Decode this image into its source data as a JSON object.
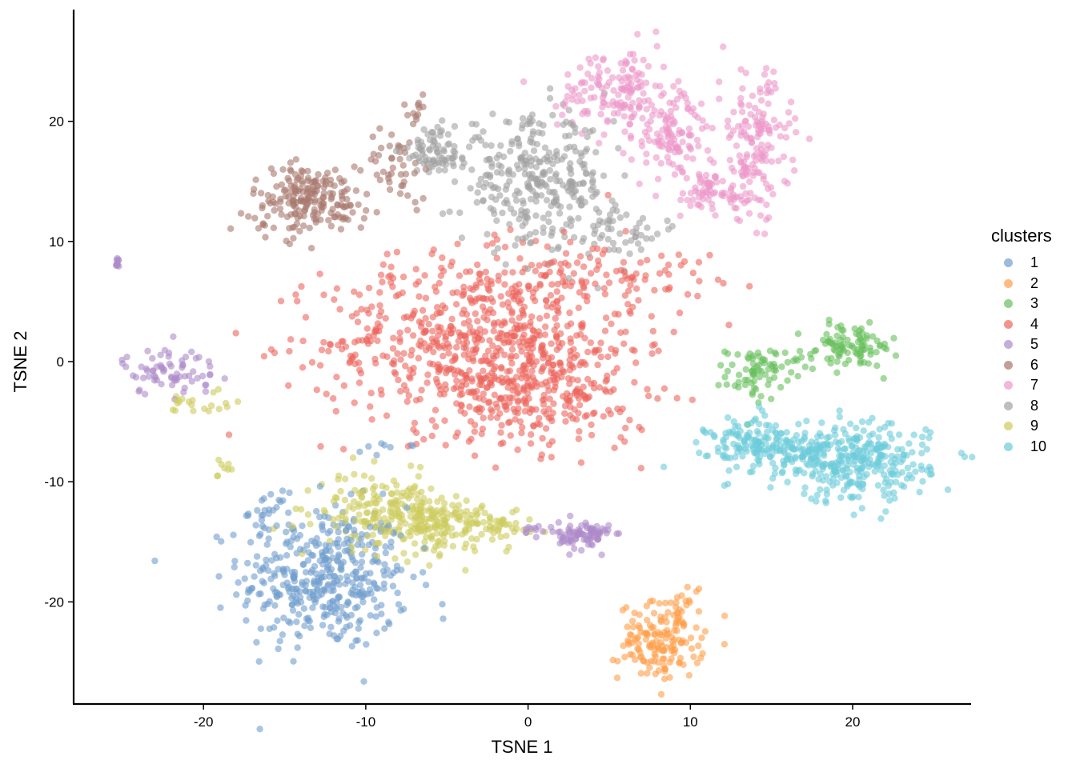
{
  "chart_data": {
    "type": "scatter",
    "title": "",
    "xlabel": "TSNE 1",
    "ylabel": "TSNE 2",
    "xlim": [
      -28,
      27.3
    ],
    "ylim": [
      -28.5,
      29.3
    ],
    "x_ticks": [
      -20,
      -10,
      0,
      10,
      20
    ],
    "y_ticks": [
      -20,
      -10,
      0,
      10,
      20
    ],
    "x_tick_labels": [
      "-20",
      "-10",
      "0",
      "10",
      "20"
    ],
    "y_tick_labels": [
      "-20",
      "-10",
      "0",
      "10",
      "20"
    ],
    "grid": false,
    "point_alpha": 0.6,
    "legend": {
      "title": "clusters",
      "position": "right"
    },
    "series": [
      {
        "name": "1",
        "color": "#729ece",
        "blobs": [
          {
            "cx": -12.5,
            "cy": -18,
            "sx": 2.6,
            "sy": 3.0,
            "n": 420
          },
          {
            "cx": -16,
            "cy": -12.5,
            "sx": 0.6,
            "sy": 0.8,
            "n": 25
          },
          {
            "cx": -8.5,
            "cy": -7.3,
            "sx": 0.8,
            "sy": 0.3,
            "n": 8
          }
        ]
      },
      {
        "name": "2",
        "color": "#ff9e4a",
        "blobs": [
          {
            "cx": 8.2,
            "cy": -23.3,
            "sx": 1.3,
            "sy": 1.6,
            "n": 150
          },
          {
            "cx": 9.8,
            "cy": -20,
            "sx": 0.5,
            "sy": 0.8,
            "n": 15
          }
        ]
      },
      {
        "name": "3",
        "color": "#67bf5c",
        "blobs": [
          {
            "cx": 14,
            "cy": -1,
            "sx": 0.9,
            "sy": 1.1,
            "n": 70
          },
          {
            "cx": 20,
            "cy": 1.3,
            "sx": 1.4,
            "sy": 0.9,
            "n": 90
          },
          {
            "cx": 16.8,
            "cy": 0.2,
            "sx": 1.0,
            "sy": 0.3,
            "n": 12
          }
        ]
      },
      {
        "name": "4",
        "color": "#ed665d",
        "blobs": [
          {
            "cx": -3,
            "cy": 1.5,
            "sx": 4.8,
            "sy": 3.6,
            "n": 700
          },
          {
            "cx": 1.5,
            "cy": -3,
            "sx": 3.0,
            "sy": 2.2,
            "n": 180
          },
          {
            "cx": 3.5,
            "cy": 7.5,
            "sx": 4.0,
            "sy": 1.4,
            "n": 110
          }
        ]
      },
      {
        "name": "5",
        "color": "#ad8bc9",
        "blobs": [
          {
            "cx": -22,
            "cy": -0.8,
            "sx": 1.5,
            "sy": 1.0,
            "n": 70
          },
          {
            "cx": 3.5,
            "cy": -14.5,
            "sx": 0.8,
            "sy": 0.6,
            "n": 80
          },
          {
            "cx": 1,
            "cy": -14,
            "sx": 0.8,
            "sy": 0.3,
            "n": 15
          },
          {
            "cx": -25.3,
            "cy": 8.3,
            "sx": 0.05,
            "sy": 0.3,
            "n": 10
          }
        ]
      },
      {
        "name": "6",
        "color": "#a8786e",
        "blobs": [
          {
            "cx": -13.5,
            "cy": 13.5,
            "sx": 1.8,
            "sy": 1.4,
            "n": 200
          },
          {
            "cx": -8,
            "cy": 16.5,
            "sx": 1.0,
            "sy": 1.5,
            "n": 40
          },
          {
            "cx": -6.8,
            "cy": 21,
            "sx": 0.5,
            "sy": 0.8,
            "n": 12
          }
        ]
      },
      {
        "name": "7",
        "color": "#ed97ca",
        "blobs": [
          {
            "cx": 5.5,
            "cy": 22.5,
            "sx": 1.8,
            "sy": 1.7,
            "n": 150
          },
          {
            "cx": 9,
            "cy": 18.5,
            "sx": 1.4,
            "sy": 1.8,
            "n": 110
          },
          {
            "cx": 14,
            "cy": 18,
            "sx": 1.1,
            "sy": 3.0,
            "n": 160
          },
          {
            "cx": 11,
            "cy": 14,
            "sx": 1.5,
            "sy": 1.0,
            "n": 60
          }
        ]
      },
      {
        "name": "8",
        "color": "#a2a2a2",
        "blobs": [
          {
            "cx": -5.5,
            "cy": 17.5,
            "sx": 1.2,
            "sy": 1.0,
            "n": 80
          },
          {
            "cx": 0.5,
            "cy": 15,
            "sx": 2.3,
            "sy": 2.6,
            "n": 300
          },
          {
            "cx": 5.5,
            "cy": 11,
            "sx": 2.0,
            "sy": 1.0,
            "n": 60
          }
        ]
      },
      {
        "name": "9",
        "color": "#cdcc5d",
        "blobs": [
          {
            "cx": -9,
            "cy": -12.5,
            "sx": 2.0,
            "sy": 1.5,
            "n": 180
          },
          {
            "cx": -5.5,
            "cy": -13.5,
            "sx": 1.6,
            "sy": 1.1,
            "n": 130
          },
          {
            "cx": -2,
            "cy": -13.5,
            "sx": 1.2,
            "sy": 0.6,
            "n": 40
          },
          {
            "cx": -20.5,
            "cy": -3.5,
            "sx": 1.0,
            "sy": 0.7,
            "n": 20
          },
          {
            "cx": -18.5,
            "cy": -9,
            "sx": 0.3,
            "sy": 0.6,
            "n": 8
          }
        ]
      },
      {
        "name": "10",
        "color": "#6dccda",
        "blobs": [
          {
            "cx": 14.5,
            "cy": -7,
            "sx": 1.7,
            "sy": 1.2,
            "n": 170
          },
          {
            "cx": 20.5,
            "cy": -8.5,
            "sx": 2.1,
            "sy": 1.6,
            "n": 280
          },
          {
            "cx": 17.5,
            "cy": -8,
            "sx": 1.2,
            "sy": 0.8,
            "n": 40
          }
        ]
      }
    ]
  }
}
